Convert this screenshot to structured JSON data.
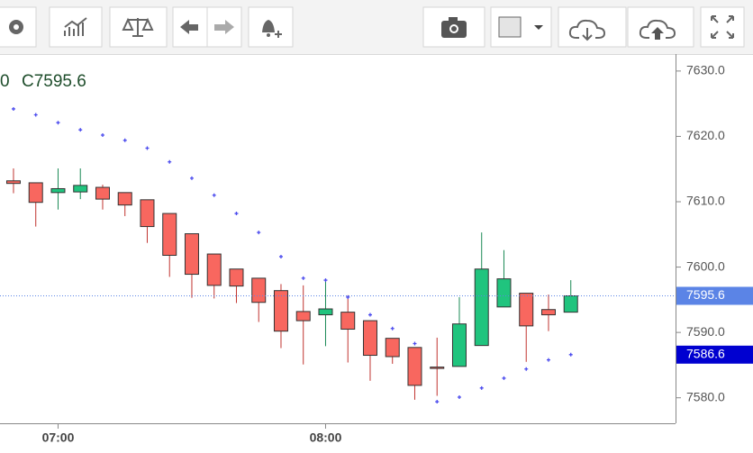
{
  "chart_data": {
    "type": "candlestick",
    "legend_text": [
      "0",
      "C7595.6"
    ],
    "categories": [
      null,
      null,
      "07:00",
      null,
      null,
      null,
      null,
      null,
      null,
      null,
      null,
      null,
      null,
      null,
      "08:00",
      null,
      null,
      null,
      null,
      null,
      null,
      null,
      null,
      null,
      null,
      null
    ],
    "open": [
      7613.2,
      7612.9,
      7611.4,
      7611.5,
      7612.2,
      7611.4,
      7610.3,
      7608.2,
      7605.1,
      7602.0,
      7599.7,
      7598.3,
      7596.4,
      7593.2,
      7592.7,
      7593.1,
      7591.8,
      7589.1,
      7587.7,
      7584.7,
      7584.8,
      7588.0,
      7593.9,
      7596.0,
      7593.5,
      7593.1
    ],
    "high": [
      7615.1,
      7612.9,
      7615.1,
      7615.1,
      7612.6,
      7611.4,
      7610.3,
      7608.2,
      7605.1,
      7602.0,
      7599.7,
      7598.3,
      7597.4,
      7597.2,
      7597.8,
      7595.7,
      7591.8,
      7589.1,
      7587.7,
      7589.2,
      7595.4,
      7605.3,
      7602.6,
      7596.0,
      7595.8,
      7598.0
    ],
    "low": [
      7611.3,
      7606.2,
      7608.8,
      7610.4,
      7608.8,
      7607.8,
      7603.7,
      7598.5,
      7595.3,
      7595.2,
      7594.5,
      7591.6,
      7587.6,
      7585.1,
      7587.9,
      7585.4,
      7582.6,
      7585.2,
      7579.7,
      7580.3,
      7584.8,
      7588.0,
      7593.9,
      7585.5,
      7590.2,
      7593.1
    ],
    "close": [
      7612.8,
      7609.9,
      7612.0,
      7612.5,
      7610.4,
      7609.5,
      7606.2,
      7601.8,
      7598.9,
      7597.2,
      7597.1,
      7594.6,
      7590.2,
      7591.8,
      7593.6,
      7590.5,
      7586.5,
      7586.3,
      7581.9,
      7584.6,
      7591.3,
      7599.7,
      7598.2,
      7591.0,
      7592.7,
      7595.6
    ],
    "sar": [
      7624.2,
      7623.3,
      7622.1,
      7621.0,
      7620.2,
      7619.4,
      7618.2,
      7616.1,
      7613.6,
      7611.0,
      7608.2,
      7605.3,
      7601.6,
      7598.3,
      7598.0,
      7595.4,
      7592.7,
      7590.6,
      7588.3,
      7579.4,
      7580.1,
      7581.5,
      7583.0,
      7584.4,
      7585.8,
      7586.6
    ],
    "up_color": "#20c47e",
    "down_color": "#f8675f",
    "sar_color": "#4b4bee",
    "ylim": [
      7576.1,
      7632.6
    ],
    "yticks": [
      {
        "value": 7580,
        "label": "7580.0"
      },
      {
        "value": 7590,
        "label": "7590.0"
      },
      {
        "value": 7600,
        "label": "7600.0"
      },
      {
        "value": 7610,
        "label": "7610.0"
      },
      {
        "value": 7620,
        "label": "7620.0"
      },
      {
        "value": 7630,
        "label": "7630.0"
      }
    ],
    "price_tags": [
      {
        "value": 7595.6,
        "color": "#5b84e6"
      },
      {
        "value": 7586.6,
        "color": "#0000d0"
      }
    ]
  }
}
